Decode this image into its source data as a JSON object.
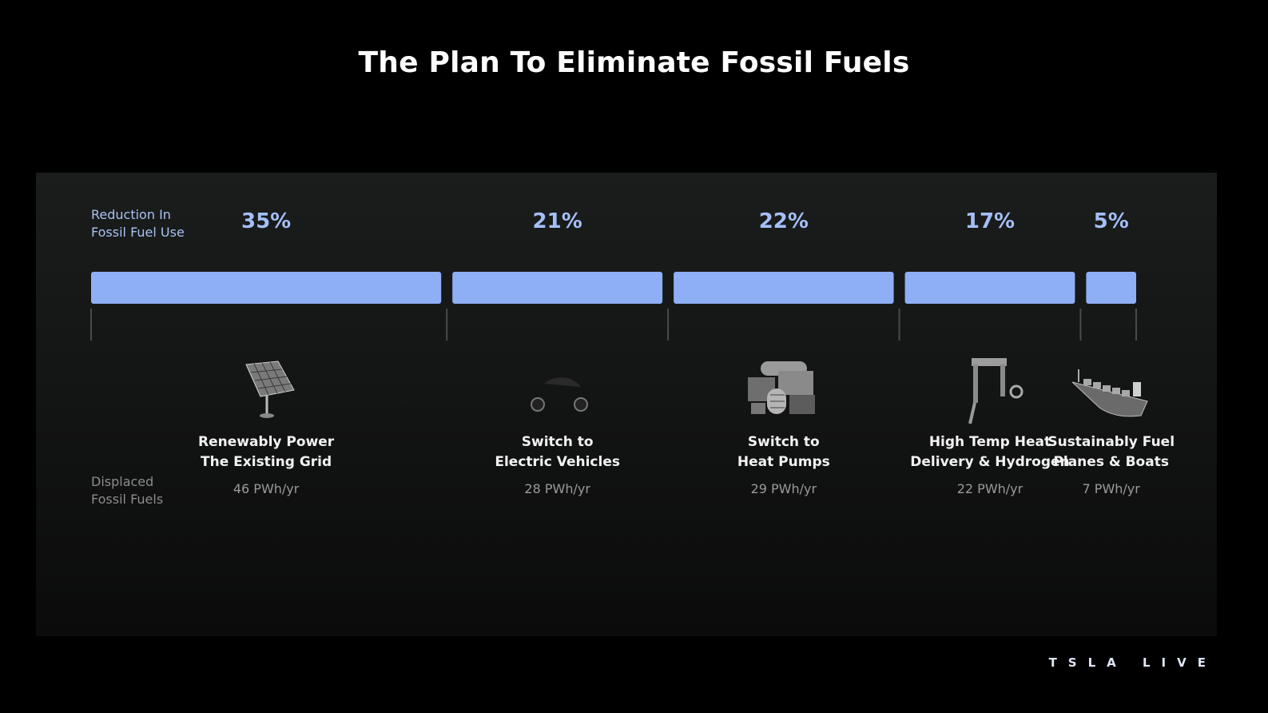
{
  "slide": {
    "title": "The Plan To Eliminate Fossil Fuels",
    "reduction_label_line1": "Reduction In",
    "reduction_label_line2": "Fossil Fuel Use",
    "displaced_label_line1": "Displaced",
    "displaced_label_line2": "Fossil Fuels",
    "brand": "TSLA LIVE",
    "bar_color": "#8eaff5",
    "accent_text_color": "#a4bff6"
  },
  "chart_data": {
    "type": "bar",
    "orientation": "horizontal-stacked",
    "title": "The Plan To Eliminate Fossil Fuels",
    "series_name": "Reduction In Fossil Fuel Use",
    "categories": [
      {
        "line1": "Renewably Power",
        "line2": "The Existing Grid",
        "icon": "solar-panel-icon"
      },
      {
        "line1": "Switch to",
        "line2": "Electric Vehicles",
        "icon": "electric-car-icon"
      },
      {
        "line1": "Switch to",
        "line2": "Heat Pumps",
        "icon": "heat-pump-icon"
      },
      {
        "line1": "High Temp Heat",
        "line2": "Delivery & Hydrogen",
        "icon": "industrial-furnace-icon"
      },
      {
        "line1": "Sustainably Fuel",
        "line2": "Planes & Boats",
        "icon": "ship-icon"
      }
    ],
    "reduction_percent": [
      35,
      21,
      22,
      17,
      5
    ],
    "reduction_labels": [
      "35%",
      "21%",
      "22%",
      "17%",
      "5%"
    ],
    "displaced_fossil_fuels": [
      "46 PWh/yr",
      "28 PWh/yr",
      "29 PWh/yr",
      "22 PWh/yr",
      "7 PWh/yr"
    ]
  }
}
